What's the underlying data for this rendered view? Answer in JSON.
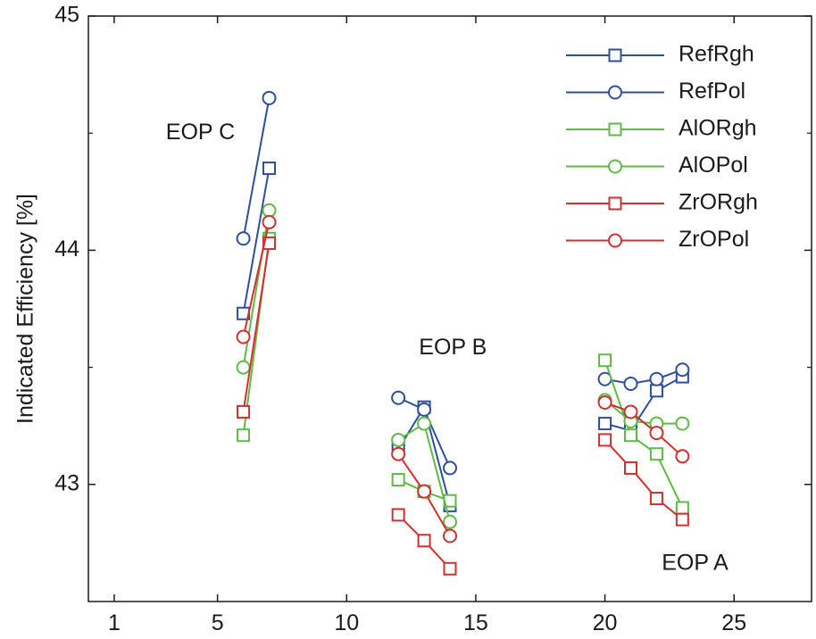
{
  "chart_data": {
    "type": "line",
    "title": "",
    "xlabel": "",
    "ylabel": "Indicated Efficiency [%]",
    "xlim": [
      0,
      28
    ],
    "ylim": [
      42.5,
      45
    ],
    "xticks": [
      1,
      5,
      10,
      15,
      20,
      25
    ],
    "yticks": [
      43,
      44,
      45
    ],
    "grid": false,
    "legend_position": "top-right",
    "annotations": [
      {
        "text": "EOP C",
        "x": 3,
        "y": 44.5
      },
      {
        "text": "EOP B",
        "x": 12.8,
        "y": 43.58
      },
      {
        "text": "EOP A",
        "x": 22.2,
        "y": 42.66
      }
    ],
    "groups": [
      [
        6,
        7
      ],
      [
        12,
        13,
        14
      ],
      [
        20,
        21,
        22,
        23
      ]
    ],
    "series": [
      {
        "name": "RefRgh",
        "color": "#2e4f9c",
        "marker": "square",
        "x": [
          6,
          7,
          12,
          13,
          14,
          20,
          21,
          22,
          23
        ],
        "y": [
          43.73,
          44.35,
          43.15,
          43.33,
          42.91,
          43.26,
          43.23,
          43.4,
          43.46
        ]
      },
      {
        "name": "RefPol",
        "color": "#2e4f9c",
        "marker": "circle",
        "x": [
          6,
          7,
          12,
          13,
          14,
          20,
          21,
          22,
          23
        ],
        "y": [
          44.05,
          44.65,
          43.37,
          43.32,
          43.07,
          43.45,
          43.43,
          43.45,
          43.49
        ]
      },
      {
        "name": "AlORgh",
        "color": "#5dbb46",
        "marker": "square",
        "x": [
          6,
          7,
          12,
          13,
          14,
          20,
          21,
          22,
          23
        ],
        "y": [
          43.21,
          44.05,
          43.02,
          42.97,
          42.93,
          43.53,
          43.21,
          43.13,
          42.9
        ]
      },
      {
        "name": "AlOPol",
        "color": "#5dbb46",
        "marker": "circle",
        "x": [
          6,
          7,
          12,
          13,
          14,
          20,
          21,
          22,
          23
        ],
        "y": [
          43.5,
          44.17,
          43.19,
          43.26,
          42.84,
          43.36,
          43.27,
          43.26,
          43.26
        ]
      },
      {
        "name": "ZrORgh",
        "color": "#d42f2f",
        "marker": "square",
        "x": [
          6,
          7,
          12,
          13,
          14,
          20,
          21,
          22,
          23
        ],
        "y": [
          43.31,
          44.03,
          42.87,
          42.76,
          42.64,
          43.19,
          43.07,
          42.94,
          42.85
        ]
      },
      {
        "name": "ZrOPol",
        "color": "#d42f2f",
        "marker": "circle",
        "x": [
          6,
          7,
          12,
          13,
          14,
          20,
          21,
          22,
          23
        ],
        "y": [
          43.63,
          44.12,
          43.13,
          42.97,
          42.78,
          43.35,
          43.31,
          43.22,
          43.12
        ]
      }
    ]
  }
}
